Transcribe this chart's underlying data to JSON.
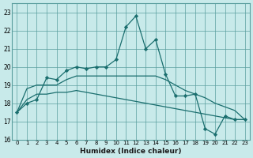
{
  "xlabel": "Humidex (Indice chaleur)",
  "bg_color": "#c8eaea",
  "grid_color": "#5a9e9e",
  "line_color": "#1a6e6e",
  "xlim": [
    -0.5,
    23.5
  ],
  "ylim": [
    16,
    23.5
  ],
  "yticks": [
    16,
    17,
    18,
    19,
    20,
    21,
    22,
    23
  ],
  "xticks": [
    0,
    1,
    2,
    3,
    4,
    5,
    6,
    7,
    8,
    9,
    10,
    11,
    12,
    13,
    14,
    15,
    16,
    17,
    18,
    19,
    20,
    21,
    22,
    23
  ],
  "series1_x": [
    0,
    1,
    2,
    3,
    4,
    5,
    6,
    7,
    8,
    9,
    10,
    11,
    12,
    13,
    14,
    15,
    16,
    17,
    18,
    19,
    20,
    21,
    22,
    23
  ],
  "series1_y": [
    17.5,
    18.0,
    18.2,
    19.4,
    19.3,
    19.8,
    20.0,
    19.9,
    20.0,
    20.0,
    20.4,
    22.2,
    22.8,
    21.0,
    21.5,
    19.6,
    18.4,
    18.4,
    18.5,
    16.6,
    16.3,
    17.3,
    17.1,
    17.1
  ],
  "series2_x": [
    0,
    1,
    2,
    3,
    4,
    5,
    6,
    7,
    8,
    9,
    10,
    11,
    12,
    13,
    14,
    15,
    16,
    17,
    18,
    19,
    20,
    21,
    22,
    23
  ],
  "series2_y": [
    17.5,
    18.8,
    19.0,
    19.0,
    19.0,
    19.3,
    19.5,
    19.5,
    19.5,
    19.5,
    19.5,
    19.5,
    19.5,
    19.5,
    19.5,
    19.3,
    19.0,
    18.7,
    18.5,
    18.3,
    18.0,
    17.8,
    17.6,
    17.1
  ],
  "series3_x": [
    0,
    1,
    2,
    3,
    4,
    5,
    6,
    7,
    8,
    9,
    10,
    11,
    12,
    13,
    14,
    15,
    16,
    17,
    18,
    19,
    20,
    21,
    22,
    23
  ],
  "series3_y": [
    17.5,
    18.2,
    18.5,
    18.5,
    18.6,
    18.6,
    18.7,
    18.6,
    18.5,
    18.4,
    18.3,
    18.2,
    18.1,
    18.0,
    17.9,
    17.8,
    17.7,
    17.6,
    17.5,
    17.4,
    17.3,
    17.2,
    17.1,
    17.1
  ]
}
